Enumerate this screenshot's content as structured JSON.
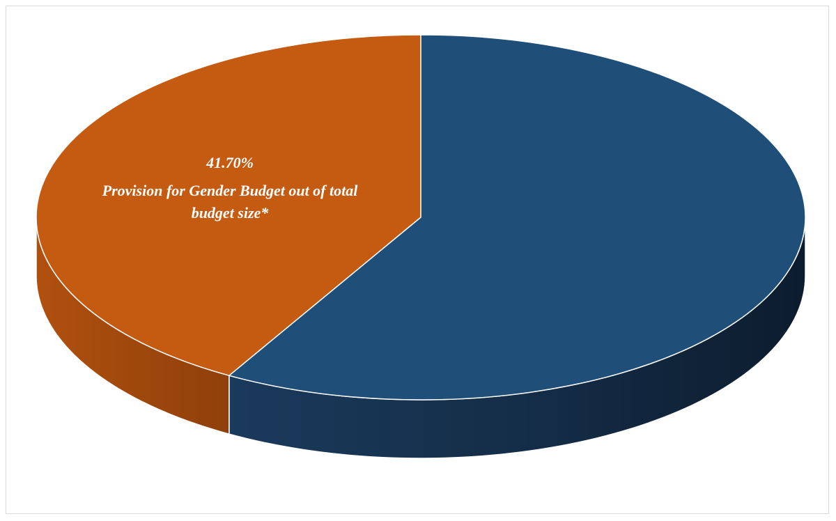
{
  "chart_data": {
    "type": "pie",
    "style": "3d",
    "title": "",
    "slices": [
      {
        "value": 41.7,
        "color": "#C55A11",
        "label_value": "41.70%",
        "label_text": "Provision for Gender Budget out of total budget size*"
      },
      {
        "value": 58.3,
        "color": "#1F4E79",
        "label_value": "",
        "label_text": ""
      }
    ],
    "legend": "none",
    "colors": {
      "gender_budget": "#C55A11",
      "other": "#1F4E79",
      "slice_border": "#ffffff"
    }
  }
}
